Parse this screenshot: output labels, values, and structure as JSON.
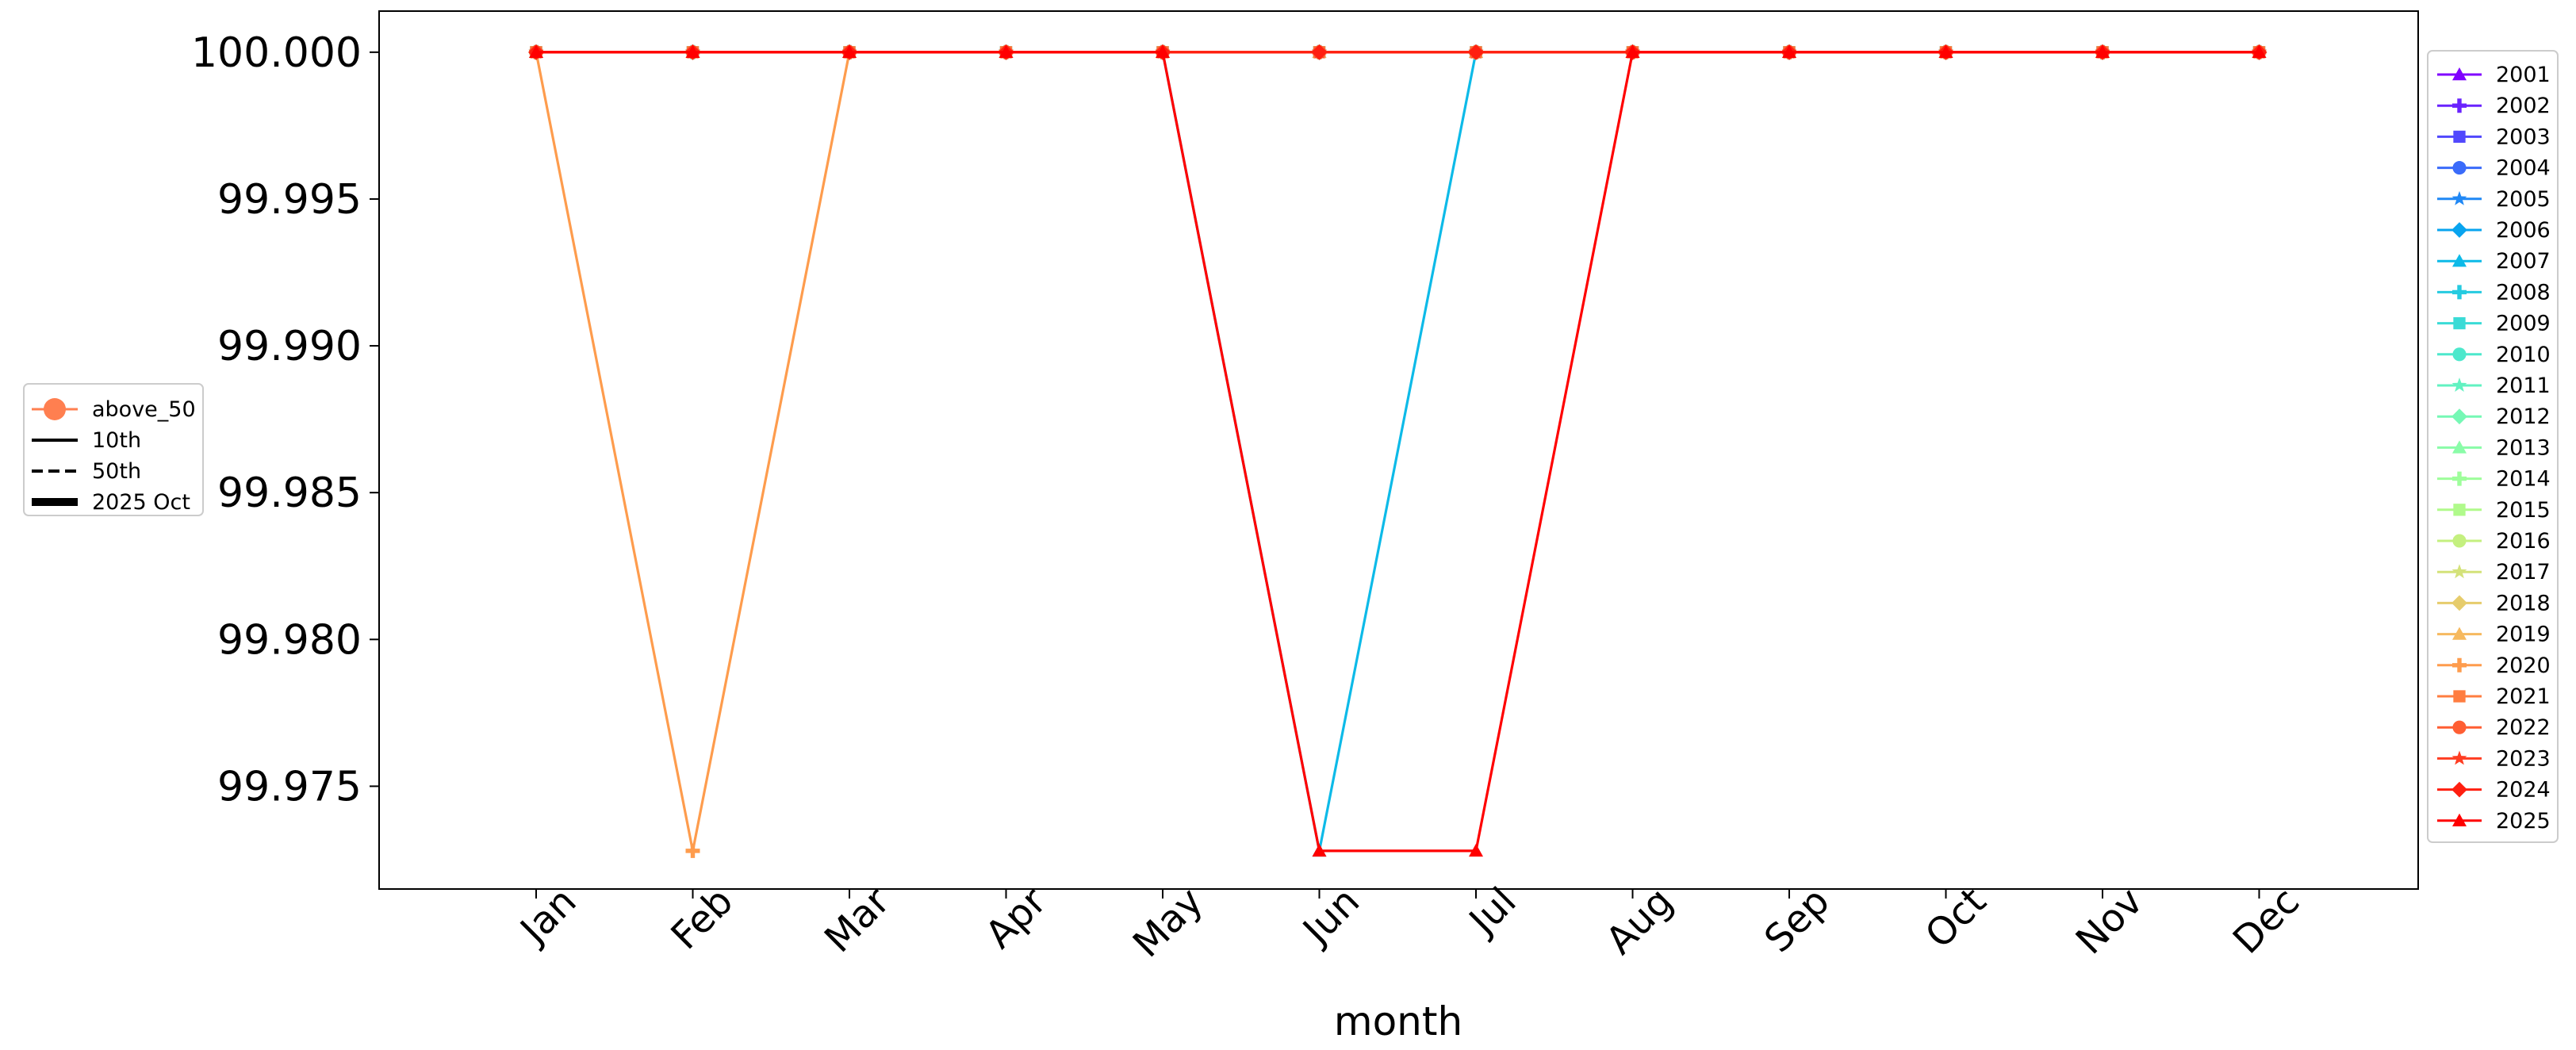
{
  "chart_data": {
    "type": "line",
    "xlabel": "month",
    "ylabel": "",
    "categories": [
      "Jan",
      "Feb",
      "Mar",
      "Apr",
      "May",
      "Jun",
      "Jul",
      "Aug",
      "Sep",
      "Oct",
      "Nov",
      "Dec"
    ],
    "ylim": [
      99.9715,
      100.0014
    ],
    "yticks": [
      "100.000",
      "99.995",
      "99.990",
      "99.985",
      "99.980",
      "99.975"
    ],
    "ytick_values": [
      100.0,
      99.995,
      99.99,
      99.985,
      99.98,
      99.975
    ],
    "grid": false,
    "legend_position": "right",
    "series": [
      {
        "name": "2001",
        "color": "#8000ff",
        "marker": "triangle",
        "values": [
          100,
          100,
          100,
          100,
          100,
          100,
          100,
          100,
          100,
          100,
          100,
          100
        ]
      },
      {
        "name": "2002",
        "color": "#6a23fe",
        "marker": "plus",
        "values": [
          100,
          100,
          100,
          100,
          100,
          100,
          100,
          100,
          100,
          100,
          100,
          100
        ]
      },
      {
        "name": "2003",
        "color": "#5148fd",
        "marker": "square",
        "values": [
          100,
          100,
          100,
          100,
          100,
          100,
          100,
          100,
          100,
          100,
          100,
          100
        ]
      },
      {
        "name": "2004",
        "color": "#3a6bfa",
        "marker": "circle",
        "values": [
          100,
          100,
          100,
          100,
          100,
          100,
          100,
          100,
          100,
          100,
          100,
          100
        ]
      },
      {
        "name": "2005",
        "color": "#2088f5",
        "marker": "star",
        "values": [
          100,
          100,
          100,
          100,
          100,
          100,
          100,
          100,
          100,
          100,
          100,
          100
        ]
      },
      {
        "name": "2006",
        "color": "#08a4ef",
        "marker": "diamond",
        "values": [
          100,
          100,
          100,
          100,
          100,
          100,
          100,
          100,
          100,
          100,
          100,
          100
        ]
      },
      {
        "name": "2007",
        "color": "#0dbae8",
        "marker": "triangle",
        "values": [
          100,
          100,
          100,
          100,
          100,
          99.9728,
          100,
          100,
          100,
          100,
          100,
          100
        ]
      },
      {
        "name": "2008",
        "color": "#25cbe0",
        "marker": "plus",
        "values": [
          100,
          100,
          100,
          100,
          100,
          100,
          100,
          100,
          100,
          100,
          100,
          100
        ]
      },
      {
        "name": "2009",
        "color": "#3adbd6",
        "marker": "square",
        "values": [
          100,
          100,
          100,
          100,
          100,
          100,
          100,
          100,
          100,
          100,
          100,
          100
        ]
      },
      {
        "name": "2010",
        "color": "#4de8cc",
        "marker": "circle",
        "values": [
          100,
          100,
          100,
          100,
          100,
          100,
          100,
          100,
          100,
          100,
          100,
          100
        ]
      },
      {
        "name": "2011",
        "color": "#62f2c1",
        "marker": "star",
        "values": [
          100,
          100,
          100,
          100,
          100,
          100,
          100,
          100,
          100,
          100,
          100,
          100
        ]
      },
      {
        "name": "2012",
        "color": "#76f8b5",
        "marker": "diamond",
        "values": [
          100,
          100,
          100,
          100,
          100,
          100,
          100,
          100,
          100,
          100,
          100,
          100
        ]
      },
      {
        "name": "2013",
        "color": "#8afca8",
        "marker": "triangle",
        "values": [
          100,
          100,
          100,
          100,
          100,
          100,
          100,
          100,
          100,
          100,
          100,
          100
        ]
      },
      {
        "name": "2014",
        "color": "#9efe9b",
        "marker": "plus",
        "values": [
          100,
          100,
          100,
          100,
          100,
          100,
          100,
          100,
          100,
          100,
          100,
          100
        ]
      },
      {
        "name": "2015",
        "color": "#b0fa8b",
        "marker": "square",
        "values": [
          100,
          100,
          100,
          100,
          100,
          100,
          100,
          100,
          100,
          100,
          100,
          100
        ]
      },
      {
        "name": "2016",
        "color": "#c4f07f",
        "marker": "circle",
        "values": [
          100,
          100,
          100,
          100,
          100,
          100,
          100,
          100,
          100,
          100,
          100,
          100
        ]
      },
      {
        "name": "2017",
        "color": "#d4e27a",
        "marker": "star",
        "values": [
          100,
          100,
          100,
          100,
          100,
          100,
          100,
          100,
          100,
          100,
          100,
          100
        ]
      },
      {
        "name": "2018",
        "color": "#e6cc6c",
        "marker": "diamond",
        "values": [
          100,
          100,
          100,
          100,
          100,
          100,
          100,
          100,
          100,
          100,
          100,
          100
        ]
      },
      {
        "name": "2019",
        "color": "#f6b95f",
        "marker": "triangle",
        "values": [
          100,
          100,
          100,
          100,
          100,
          100,
          100,
          100,
          100,
          100,
          100,
          100
        ]
      },
      {
        "name": "2020",
        "color": "#fe9c4d",
        "marker": "plus",
        "values": [
          100,
          99.9728,
          100,
          100,
          100,
          100,
          100,
          100,
          100,
          100,
          100,
          100
        ]
      },
      {
        "name": "2021",
        "color": "#ff7d40",
        "marker": "square",
        "values": [
          100,
          100,
          100,
          100,
          100,
          100,
          100,
          100,
          100,
          100,
          100,
          100
        ]
      },
      {
        "name": "2022",
        "color": "#ff5e33",
        "marker": "circle",
        "values": [
          100,
          100,
          100,
          100,
          100,
          100,
          100,
          100,
          100,
          100,
          100,
          100
        ]
      },
      {
        "name": "2023",
        "color": "#ff3d22",
        "marker": "star",
        "values": [
          100,
          100,
          100,
          100,
          100,
          100,
          100,
          100,
          100,
          100,
          100,
          100
        ]
      },
      {
        "name": "2024",
        "color": "#ff1f10",
        "marker": "diamond",
        "values": [
          100,
          100,
          100,
          100,
          100,
          100,
          100,
          100,
          100,
          100,
          100,
          100
        ]
      },
      {
        "name": "2025",
        "color": "#ff0000",
        "marker": "triangle",
        "values": [
          100,
          100,
          100,
          100,
          100,
          99.9728,
          99.9728,
          100,
          100,
          100,
          100,
          100
        ]
      }
    ],
    "left_legend": [
      {
        "label": "above_50",
        "kind": "marker",
        "color": "#ff7f50"
      },
      {
        "label": "10th",
        "kind": "solid",
        "color": "#000000"
      },
      {
        "label": "50th",
        "kind": "dashed",
        "color": "#000000"
      },
      {
        "label": "2025 Oct",
        "kind": "thick",
        "color": "#000000"
      }
    ]
  }
}
